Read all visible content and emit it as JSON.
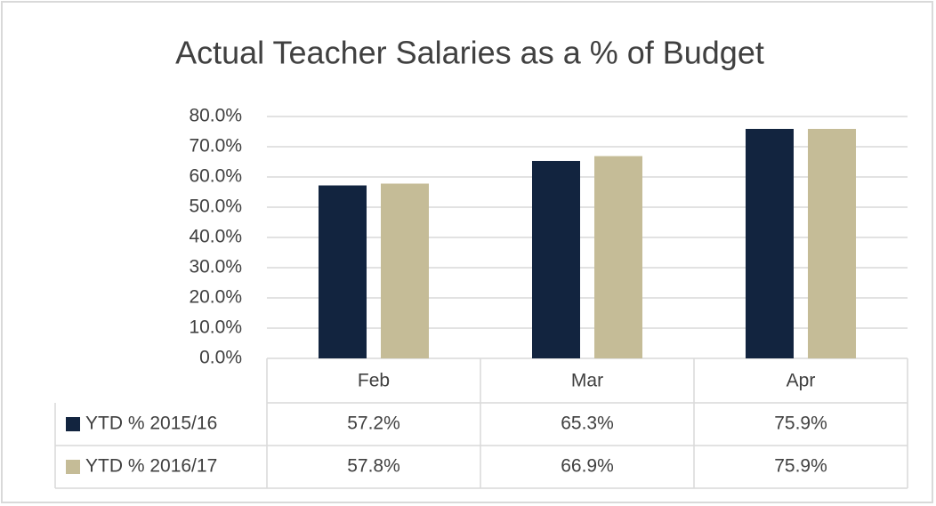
{
  "chart_data": {
    "type": "bar",
    "title": "Actual Teacher Salaries as a % of Budget",
    "categories": [
      "Feb",
      "Mar",
      "Apr"
    ],
    "series": [
      {
        "name": "YTD % 2015/16",
        "color": "#12243f",
        "values": [
          57.2,
          65.3,
          75.9
        ],
        "value_labels": [
          "57.2%",
          "65.3%",
          "75.9%"
        ]
      },
      {
        "name": "YTD % 2016/17",
        "color": "#c5bc97",
        "values": [
          57.8,
          66.9,
          75.9
        ],
        "value_labels": [
          "57.8%",
          "66.9%",
          "75.9%"
        ]
      }
    ],
    "ylim": [
      0,
      80
    ],
    "yticks": [
      {
        "value": 0,
        "label": "0.0%"
      },
      {
        "value": 10,
        "label": "10.0%"
      },
      {
        "value": 20,
        "label": "20.0%"
      },
      {
        "value": 30,
        "label": "30.0%"
      },
      {
        "value": 40,
        "label": "40.0%"
      },
      {
        "value": 50,
        "label": "50.0%"
      },
      {
        "value": 60,
        "label": "60.0%"
      },
      {
        "value": 70,
        "label": "70.0%"
      },
      {
        "value": 80,
        "label": "80.0%"
      }
    ],
    "grid": true
  }
}
